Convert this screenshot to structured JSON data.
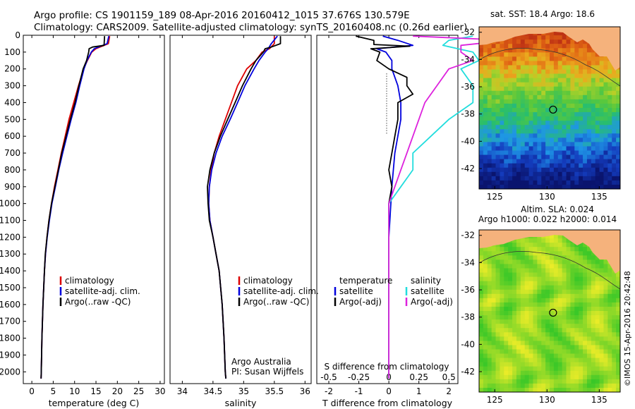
{
  "header": {
    "title_line1": "Argo profile: CS 1901159_189 08-Apr-2016 20160412_1015 37.676S 130.579E",
    "title_line2": "Climatology: CARS2009. Satellite-adjusted climatology: synTS_20160408.nc (0.26d earlier)"
  },
  "footer": {
    "imos_stamp": "©IMOS 15-Apr-2016 20:42:48",
    "argo_credit": "Argo Australia",
    "pi_credit": "PI: Susan Wijffels"
  },
  "colors": {
    "climatology": "#dd0000",
    "satellite": "#0000dd",
    "argo": "#000000",
    "sal_satellite": "#22dddd",
    "sal_argo": "#dd22dd"
  },
  "chart_data": [
    {
      "type": "line",
      "name": "temperature-profile",
      "xlabel": "temperature (deg C)",
      "ylabel": "",
      "xlim": [
        -2,
        31
      ],
      "ylim": [
        2070,
        0
      ],
      "xticks": [
        0,
        5,
        10,
        15,
        20,
        25,
        30
      ],
      "yticks": [
        0,
        100,
        200,
        300,
        400,
        500,
        600,
        700,
        800,
        900,
        1000,
        1100,
        1200,
        1300,
        1400,
        1500,
        1600,
        1700,
        1800,
        1900,
        2000
      ],
      "legend": [
        "climatology",
        "satellite-adj. clim.",
        "Argo(..raw -QC)"
      ],
      "series": [
        {
          "name": "climatology",
          "color": "#dd0000",
          "depth": [
            5,
            50,
            80,
            100,
            150,
            200,
            300,
            400,
            500,
            600,
            700,
            800,
            900,
            1000,
            1100,
            1200,
            1300,
            1400,
            1600,
            1800,
            2000,
            2040
          ],
          "values": [
            18.2,
            17.9,
            15.0,
            14.0,
            13.0,
            12.1,
            10.9,
            9.8,
            8.7,
            7.8,
            6.9,
            6.1,
            5.3,
            4.6,
            4.0,
            3.55,
            3.2,
            2.95,
            2.6,
            2.35,
            2.2,
            2.15
          ]
        },
        {
          "name": "satellite",
          "color": "#0000dd",
          "depth": [
            5,
            50,
            80,
            100,
            150,
            200,
            300,
            400,
            500,
            600,
            700,
            800,
            900,
            1000,
            1100,
            1200,
            1300,
            1400,
            1600,
            1800,
            2000,
            2040
          ],
          "values": [
            18.0,
            17.6,
            14.6,
            13.9,
            12.9,
            12.2,
            11.2,
            10.3,
            9.2,
            8.2,
            7.2,
            6.3,
            5.5,
            4.7,
            4.1,
            3.6,
            3.2,
            2.95,
            2.6,
            2.35,
            2.2,
            2.15
          ]
        },
        {
          "name": "argo",
          "color": "#000000",
          "depth": [
            5,
            60,
            70,
            80,
            100,
            150,
            200,
            300,
            400,
            500,
            600,
            700,
            800,
            900,
            1000,
            1100,
            1200,
            1300,
            1400,
            1600,
            1800,
            2000,
            2040
          ],
          "values": [
            17.0,
            16.9,
            14.2,
            13.4,
            13.3,
            12.8,
            12.0,
            11.0,
            10.1,
            9.0,
            8.0,
            7.0,
            6.2,
            5.4,
            4.6,
            4.0,
            3.55,
            3.15,
            2.95,
            2.6,
            2.35,
            2.2,
            2.15
          ]
        }
      ]
    },
    {
      "type": "line",
      "name": "salinity-profile",
      "xlabel": "salinity",
      "xlim": [
        33.8,
        36.1
      ],
      "ylim": [
        2070,
        0
      ],
      "xticks": [
        34,
        34.5,
        35,
        35.5,
        36
      ],
      "legend": [
        "climatology",
        "satellite-adj. clim.",
        "Argo(..raw -QC)"
      ],
      "series": [
        {
          "name": "climatology",
          "color": "#dd0000",
          "depth": [
            5,
            50,
            80,
            100,
            150,
            200,
            300,
            400,
            500,
            600,
            700,
            800,
            900,
            1000,
            1100,
            1200,
            1300,
            1400,
            1600,
            1800,
            2000,
            2040
          ],
          "values": [
            35.5,
            35.5,
            35.42,
            35.3,
            35.2,
            35.05,
            34.9,
            34.8,
            34.7,
            34.6,
            34.52,
            34.47,
            34.44,
            34.43,
            34.45,
            34.5,
            34.55,
            34.6,
            34.65,
            34.68,
            34.7,
            34.71
          ]
        },
        {
          "name": "satellite",
          "color": "#0000dd",
          "depth": [
            5,
            50,
            80,
            100,
            150,
            200,
            300,
            400,
            500,
            600,
            700,
            800,
            900,
            1000,
            1100,
            1200,
            1300,
            1400,
            1600,
            1800,
            2000,
            2040
          ],
          "values": [
            35.55,
            35.45,
            35.4,
            35.35,
            35.25,
            35.17,
            35.02,
            34.9,
            34.78,
            34.65,
            34.55,
            34.48,
            34.44,
            34.43,
            34.45,
            34.5,
            34.55,
            34.6,
            34.65,
            34.68,
            34.7,
            34.71
          ]
        },
        {
          "name": "argo",
          "color": "#000000",
          "depth": [
            5,
            50,
            70,
            80,
            100,
            150,
            200,
            300,
            400,
            500,
            600,
            700,
            800,
            900,
            1000,
            1100,
            1200,
            1300,
            1400,
            1600,
            1800,
            2000,
            2040
          ],
          "values": [
            35.6,
            35.6,
            35.45,
            35.35,
            35.32,
            35.2,
            35.12,
            34.98,
            34.86,
            34.74,
            34.62,
            34.52,
            34.45,
            34.41,
            34.42,
            34.44,
            34.5,
            34.55,
            34.6,
            34.65,
            34.68,
            34.7,
            34.71
          ]
        }
      ]
    },
    {
      "type": "line",
      "name": "difference-profile",
      "xlabel": "T difference from climatology",
      "xlabel_top": "S difference from climatology",
      "xlim": [
        -2.4,
        2.3
      ],
      "ylim": [
        2070,
        0
      ],
      "xticks": [
        -2,
        -1,
        0,
        1,
        2
      ],
      "xticks_s": [
        -0.5,
        -0.25,
        0,
        0.25,
        0.5
      ],
      "legend_headers": [
        "temperature",
        "salinity"
      ],
      "legend": [
        "satellite",
        "Argo(-adj)",
        "satellite",
        "Argo(-adj)"
      ],
      "series": [
        {
          "name": "temperature satellite",
          "color": "#0000dd",
          "depth": [
            5,
            30,
            60,
            80,
            100,
            150,
            200,
            300,
            400,
            500,
            700,
            900,
            1200,
            1600,
            2040
          ],
          "values": [
            -0.2,
            0.3,
            0.8,
            -0.4,
            -0.1,
            0.1,
            0.1,
            0.3,
            0.4,
            0.4,
            0.2,
            0.1,
            0.0,
            0.0,
            0.0
          ]
        },
        {
          "name": "temperature argo",
          "color": "#000000",
          "depth": [
            5,
            30,
            55,
            65,
            80,
            100,
            150,
            200,
            250,
            300,
            350,
            400,
            500,
            600,
            700,
            800,
            900,
            1000,
            1200,
            1600,
            2040
          ],
          "values": [
            -1.1,
            -0.5,
            -0.5,
            0.7,
            -0.6,
            -0.3,
            -0.4,
            0.0,
            0.6,
            0.6,
            0.8,
            0.3,
            0.3,
            0.2,
            0.1,
            0.0,
            0.1,
            0.0,
            0.0,
            0.0,
            0.0
          ]
        },
        {
          "name": "salinity satellite",
          "color": "#22dddd",
          "depth": [
            5,
            30,
            60,
            100,
            150,
            200,
            300,
            400,
            500,
            600,
            700,
            800,
            900,
            1000,
            1200,
            1600,
            2040
          ],
          "values": [
            0.7,
            0.5,
            0.45,
            0.7,
            0.75,
            0.6,
            0.7,
            0.7,
            0.5,
            0.35,
            0.2,
            0.2,
            0.1,
            0.0,
            0.0,
            0.0,
            0.0
          ]
        },
        {
          "name": "salinity argo",
          "color": "#dd22dd",
          "depth": [
            5,
            30,
            60,
            100,
            150,
            200,
            300,
            400,
            500,
            600,
            700,
            800,
            900,
            1000,
            1200,
            1600,
            2040
          ],
          "values": [
            0.2,
            1.0,
            0.6,
            0.6,
            0.7,
            0.5,
            0.4,
            0.3,
            0.25,
            0.2,
            0.15,
            0.1,
            0.05,
            0.0,
            0.0,
            0.0,
            0.0
          ]
        }
      ]
    },
    {
      "type": "heatmap",
      "name": "sst-map",
      "title": "sat. SST: 18.4 Argo: 18.6",
      "xlim": [
        123.5,
        137
      ],
      "ylim": [
        -43.5,
        -31.6
      ],
      "xticks": [
        125,
        130,
        135
      ],
      "yticks": [
        -32,
        -34,
        -36,
        -38,
        -40,
        -42
      ],
      "float_lon": 130.579,
      "float_lat": -37.676
    },
    {
      "type": "heatmap",
      "name": "sla-map",
      "title_line1": "Altim. SLA: 0.024",
      "title_line2": "Argo h1000: 0.022 h2000: 0.014",
      "xlim": [
        123.5,
        137
      ],
      "ylim": [
        -43.5,
        -31.6
      ],
      "xticks": [
        125,
        130,
        135
      ],
      "yticks": [
        -32,
        -34,
        -36,
        -38,
        -40,
        -42
      ],
      "float_lon": 130.579,
      "float_lat": -37.676
    }
  ]
}
